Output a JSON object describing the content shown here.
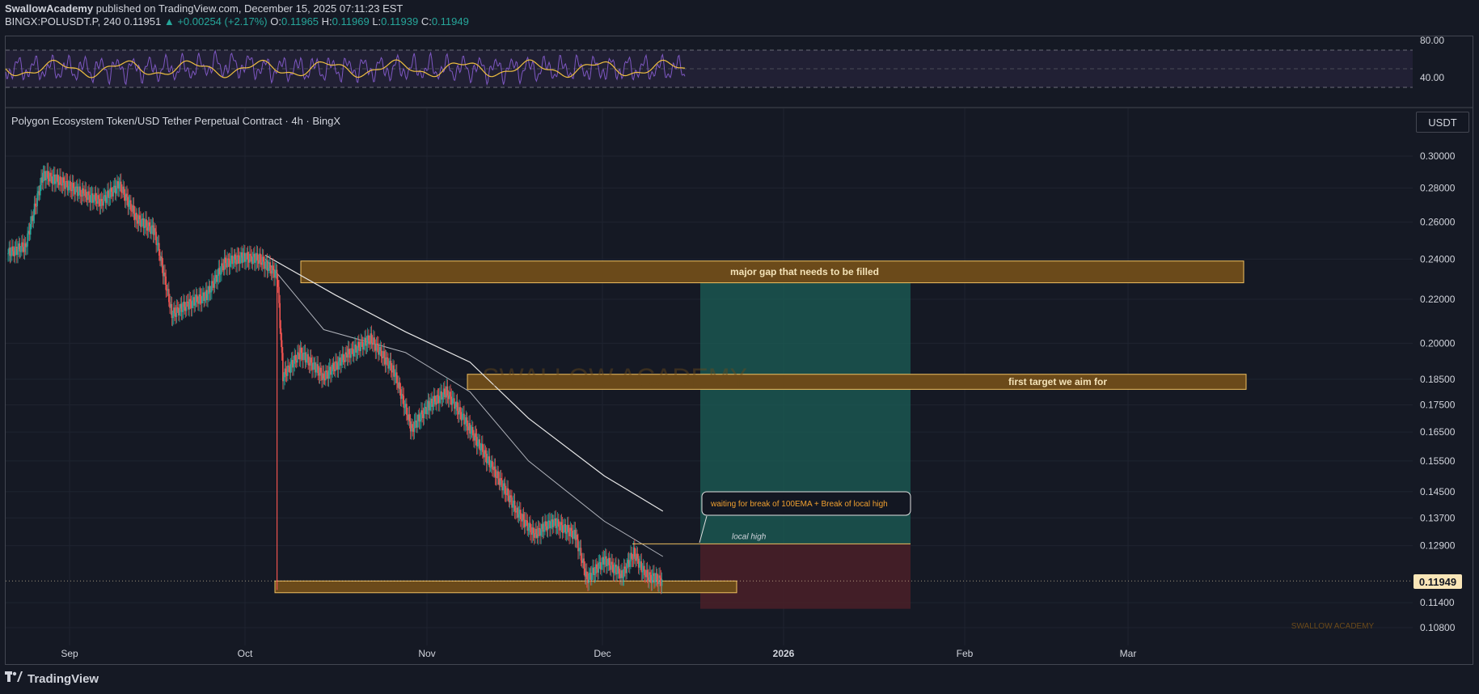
{
  "header": {
    "author": "SwallowAcademy",
    "published": " published on TradingView.com, December 15, 2025 07:11:23 EST",
    "symbol": "BINGX:POLUSDT.P, 240",
    "last": "0.11951",
    "change": "+0.00254 (+2.17%)",
    "o_label": "O:",
    "o": "0.11965",
    "h_label": "H:",
    "h": "0.11969",
    "l_label": "L:",
    "l": "0.11939",
    "c_label": "C:",
    "c": "0.11949"
  },
  "chart_title": "Polygon Ecosystem Token/USD Tether Perpetual Contract · 4h · BingX",
  "currency_button": "USDT",
  "last_price_tag": "0.11949",
  "watermark": "SWALLOW ACADEMY",
  "footer_brand": "TradingView",
  "colors": {
    "background": "#151924",
    "up": "#26a69a",
    "down": "#ef5350",
    "zone_fill": "#6b4a1a",
    "zone_border": "#f0c060",
    "profit_fill": "#1b5e55",
    "loss_fill": "#4a2028",
    "rsi_line": "#7e57c2",
    "rsi_ma": "#f0c040"
  },
  "annotations": {
    "gap": "major gap that needs to be filled",
    "target": "first target we aim for",
    "callout": "waiting for break of 100EMA + Break of local high",
    "local_high": "local high"
  },
  "chart_data": {
    "type": "line",
    "title": "Polygon Ecosystem Token/USD Tether Perpetual Contract · 4h · BingX",
    "x_ticks": [
      "Sep",
      "Oct",
      "Nov",
      "Dec",
      "2026",
      "Feb",
      "Mar"
    ],
    "y_ticks": [
      "0.30000",
      "0.28000",
      "0.26000",
      "0.24000",
      "0.22000",
      "0.20000",
      "0.18500",
      "0.17500",
      "0.16500",
      "0.15500",
      "0.14500",
      "0.13700",
      "0.12900",
      "0.11400",
      "0.10800"
    ],
    "rsi_ticks": [
      "80.00",
      "40.00"
    ],
    "price_series": [
      {
        "x": "Aug 25",
        "y": 0.243
      },
      {
        "x": "Aug 28",
        "y": 0.247
      },
      {
        "x": "Aug 31",
        "y": 0.288
      },
      {
        "x": "Sep 3",
        "y": 0.284
      },
      {
        "x": "Sep 7",
        "y": 0.276
      },
      {
        "x": "Sep 10",
        "y": 0.272
      },
      {
        "x": "Sep 13",
        "y": 0.282
      },
      {
        "x": "Sep 16",
        "y": 0.262
      },
      {
        "x": "Sep 19",
        "y": 0.255
      },
      {
        "x": "Sep 22",
        "y": 0.213
      },
      {
        "x": "Sep 25",
        "y": 0.218
      },
      {
        "x": "Sep 28",
        "y": 0.222
      },
      {
        "x": "Oct 1",
        "y": 0.238
      },
      {
        "x": "Oct 4",
        "y": 0.241
      },
      {
        "x": "Oct 7",
        "y": 0.24
      },
      {
        "x": "Oct 10",
        "y": 0.232
      },
      {
        "x": "Oct 11",
        "y": 0.186
      },
      {
        "x": "Oct 14",
        "y": 0.196
      },
      {
        "x": "Oct 18",
        "y": 0.186
      },
      {
        "x": "Oct 22",
        "y": 0.195
      },
      {
        "x": "Oct 26",
        "y": 0.202
      },
      {
        "x": "Oct 30",
        "y": 0.188
      },
      {
        "x": "Nov 2",
        "y": 0.166
      },
      {
        "x": "Nov 5",
        "y": 0.175
      },
      {
        "x": "Nov 8",
        "y": 0.18
      },
      {
        "x": "Nov 12",
        "y": 0.166
      },
      {
        "x": "Nov 16",
        "y": 0.152
      },
      {
        "x": "Nov 20",
        "y": 0.139
      },
      {
        "x": "Nov 23",
        "y": 0.132
      },
      {
        "x": "Nov 26",
        "y": 0.136
      },
      {
        "x": "Nov 30",
        "y": 0.132
      },
      {
        "x": "Dec 2",
        "y": 0.12
      },
      {
        "x": "Dec 5",
        "y": 0.125
      },
      {
        "x": "Dec 8",
        "y": 0.121
      },
      {
        "x": "Dec 10",
        "y": 0.127
      },
      {
        "x": "Dec 12",
        "y": 0.121
      },
      {
        "x": "Dec 15",
        "y": 0.1195
      }
    ],
    "ema_100": [
      {
        "x": "Oct 8",
        "y": 0.242
      },
      {
        "x": "Oct 20",
        "y": 0.222
      },
      {
        "x": "Nov 1",
        "y": 0.205
      },
      {
        "x": "Nov 12",
        "y": 0.192
      },
      {
        "x": "Nov 22",
        "y": 0.17
      },
      {
        "x": "Dec 5",
        "y": 0.15
      },
      {
        "x": "Dec 15",
        "y": 0.139
      }
    ],
    "ema_50": [
      {
        "x": "Oct 8",
        "y": 0.24
      },
      {
        "x": "Oct 18",
        "y": 0.206
      },
      {
        "x": "Nov 1",
        "y": 0.196
      },
      {
        "x": "Nov 12",
        "y": 0.18
      },
      {
        "x": "Nov 22",
        "y": 0.155
      },
      {
        "x": "Dec 5",
        "y": 0.136
      },
      {
        "x": "Dec 15",
        "y": 0.126
      }
    ],
    "zones": {
      "gap": [
        0.228,
        0.239
      ],
      "target": [
        0.181,
        0.187
      ],
      "support": [
        0.1165,
        0.1195
      ]
    },
    "position": {
      "entry": 0.1295,
      "target": 0.229,
      "stop": 0.1125
    },
    "local_high": 0.1295,
    "last_price": 0.11949
  }
}
